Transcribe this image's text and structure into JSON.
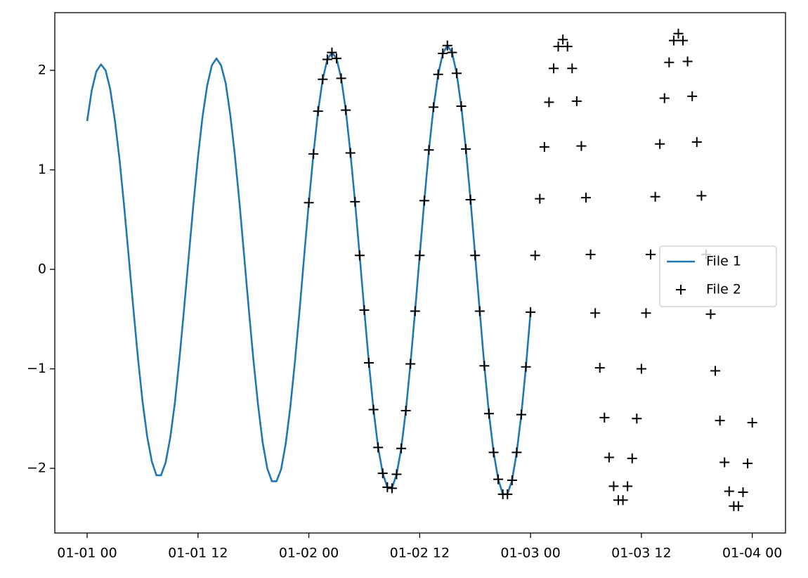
{
  "chart_data": {
    "type": "line",
    "xlim": [
      -3.5,
      75.6
    ],
    "xticks": [
      {
        "value": 0,
        "label": "01-01 00"
      },
      {
        "value": 12,
        "label": "01-01 12"
      },
      {
        "value": 24,
        "label": "01-02 00"
      },
      {
        "value": 36,
        "label": "01-02 12"
      },
      {
        "value": 48,
        "label": "01-03 00"
      },
      {
        "value": 60,
        "label": "01-03 12"
      },
      {
        "value": 72,
        "label": "01-04 00"
      }
    ],
    "ylim": [
      -2.65,
      2.58
    ],
    "yticks": [
      {
        "value": -2,
        "label": "−2"
      },
      {
        "value": -1,
        "label": "−1"
      },
      0,
      1,
      2
    ],
    "grid": false,
    "legend": "center right",
    "series": [
      {
        "name": "File 1",
        "color": "#1f77b4",
        "style": "line",
        "x": [
          0,
          0.5,
          1,
          1.5,
          2,
          2.5,
          3,
          3.5,
          4,
          4.5,
          5,
          5.5,
          6,
          6.5,
          7,
          7.5,
          8,
          8.5,
          9,
          9.5,
          10,
          10.5,
          11,
          11.5,
          12,
          12.5,
          13,
          13.5,
          14,
          14.5,
          15,
          15.5,
          16,
          16.5,
          17,
          17.5,
          18,
          18.5,
          19,
          19.5,
          20,
          20.5,
          21,
          21.5,
          22,
          22.5,
          23,
          23.5,
          24,
          24.5,
          25,
          25.5,
          26,
          26.5,
          27,
          27.5,
          28,
          28.5,
          29,
          29.5,
          30,
          30.5,
          31,
          31.5,
          32,
          32.5,
          33,
          33.5,
          34,
          34.5,
          35,
          35.5,
          36,
          36.5,
          37,
          37.5,
          38,
          38.5,
          39,
          39.5,
          40,
          40.5,
          41,
          41.5,
          42,
          42.5,
          43,
          43.5,
          44,
          44.5,
          45,
          45.5,
          46,
          46.5,
          47,
          47.5,
          48
        ],
        "values": [
          1.49,
          1.8,
          1.99,
          2.06,
          2.0,
          1.81,
          1.5,
          1.11,
          0.64,
          0.13,
          -0.39,
          -0.89,
          -1.33,
          -1.68,
          -1.93,
          -2.07,
          -2.07,
          -1.94,
          -1.69,
          -1.34,
          -0.89,
          -0.39,
          0.13,
          0.65,
          1.13,
          1.54,
          1.85,
          2.05,
          2.12,
          2.05,
          1.87,
          1.55,
          1.14,
          0.66,
          0.13,
          -0.4,
          -0.91,
          -1.36,
          -1.74,
          -2.0,
          -2.13,
          -2.13,
          -2.01,
          -1.75,
          -1.38,
          -0.92,
          -0.41,
          0.14,
          0.67,
          1.16,
          1.59,
          1.91,
          2.11,
          2.18,
          2.12,
          1.92,
          1.6,
          1.17,
          0.68,
          0.14,
          -0.41,
          -0.94,
          -1.41,
          -1.79,
          -2.05,
          -2.19,
          -2.2,
          -2.06,
          -1.8,
          -1.42,
          -0.95,
          -0.42,
          0.14,
          0.69,
          1.2,
          1.63,
          1.96,
          2.17,
          2.25,
          2.18,
          1.97,
          1.64,
          1.21,
          0.7,
          0.14,
          -0.42,
          -0.97,
          -1.45,
          -1.84,
          -2.11,
          -2.26,
          -2.26,
          -2.12,
          -1.84,
          -1.46,
          -0.98,
          -0.43
        ]
      },
      {
        "name": "File 2",
        "color": "#000000",
        "style": "marker",
        "x": [
          24,
          24.5,
          25,
          25.5,
          26,
          26.5,
          27,
          27.5,
          28,
          28.5,
          29,
          29.5,
          30,
          30.5,
          31,
          31.5,
          32,
          32.5,
          33,
          33.5,
          34,
          34.5,
          35,
          35.5,
          36,
          36.5,
          37,
          37.5,
          38,
          38.5,
          39,
          39.5,
          40,
          40.5,
          41,
          41.5,
          42,
          42.5,
          43,
          43.5,
          44,
          44.5,
          45,
          45.5,
          46,
          46.5,
          47,
          47.5,
          48,
          48.5,
          49,
          49.5,
          50,
          50.5,
          51,
          51.5,
          52,
          52.5,
          53,
          53.5,
          54,
          54.5,
          55,
          55.5,
          56,
          56.5,
          57,
          57.5,
          58,
          58.5,
          59,
          59.5,
          60,
          60.5,
          61,
          61.5,
          62,
          62.5,
          63,
          63.5,
          64,
          64.5,
          65,
          65.5,
          66,
          66.5,
          67,
          67.5,
          68,
          68.5,
          69,
          69.5,
          70,
          70.5,
          71,
          71.5,
          72
        ],
        "values": [
          0.67,
          1.16,
          1.59,
          1.91,
          2.11,
          2.18,
          2.12,
          1.92,
          1.6,
          1.17,
          0.68,
          0.14,
          -0.41,
          -0.94,
          -1.41,
          -1.79,
          -2.05,
          -2.19,
          -2.2,
          -2.06,
          -1.8,
          -1.42,
          -0.95,
          -0.42,
          0.14,
          0.69,
          1.2,
          1.63,
          1.96,
          2.17,
          2.25,
          2.18,
          1.97,
          1.64,
          1.21,
          0.7,
          0.14,
          -0.42,
          -0.97,
          -1.45,
          -1.84,
          -2.11,
          -2.26,
          -2.26,
          -2.12,
          -1.84,
          -1.46,
          -0.98,
          -0.43,
          0.14,
          0.71,
          1.23,
          1.68,
          2.02,
          2.24,
          2.31,
          2.24,
          2.02,
          1.69,
          1.24,
          0.72,
          0.15,
          -0.44,
          -0.99,
          -1.49,
          -1.89,
          -2.18,
          -2.32,
          -2.32,
          -2.18,
          -1.9,
          -1.5,
          -1.0,
          -0.44,
          0.15,
          0.73,
          1.26,
          1.72,
          2.08,
          2.3,
          2.37,
          2.3,
          2.09,
          1.74,
          1.28,
          0.74,
          0.15,
          -0.45,
          -1.02,
          -1.52,
          -1.94,
          -2.23,
          -2.38,
          -2.38,
          -2.24,
          -1.95,
          -1.54
        ]
      }
    ]
  }
}
